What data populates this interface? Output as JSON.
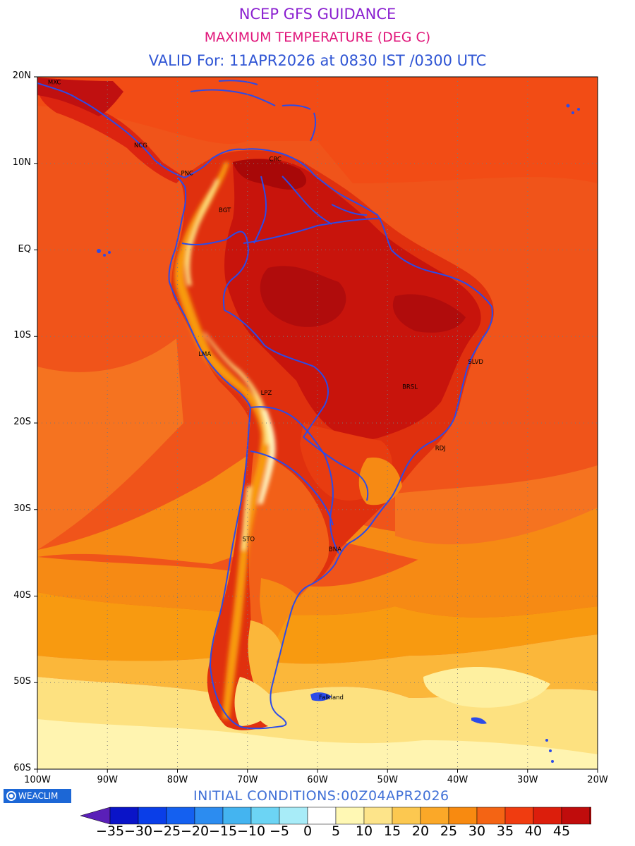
{
  "header": {
    "title": "NCEP GFS GUIDANCE",
    "subtitle": "MAXIMUM TEMPERATURE (DEG C)",
    "valid": "VALID For: 11APR2026 at 0830 IST /0300 UTC",
    "title_color": "#8a1fd0",
    "subtitle_color": "#e0157a",
    "valid_color": "#2f55d4"
  },
  "map": {
    "y_ticks": [
      "20N",
      "10N",
      "EQ",
      "10S",
      "20S",
      "30S",
      "40S",
      "50S",
      "60S"
    ],
    "x_ticks": [
      "100W",
      "90W",
      "80W",
      "70W",
      "60W",
      "50W",
      "40W",
      "30W",
      "20W"
    ],
    "coastline_color": "#2c4be8",
    "cities": [
      {
        "name": "MXC",
        "lon": -98.5,
        "lat": 19.4
      },
      {
        "name": "NCG",
        "lon": -86.2,
        "lat": 12.1
      },
      {
        "name": "CRC",
        "lon": -66.9,
        "lat": 10.5
      },
      {
        "name": "PNC",
        "lon": -79.5,
        "lat": 8.9
      },
      {
        "name": "BGT",
        "lon": -74.1,
        "lat": 4.6
      },
      {
        "name": "LMA",
        "lon": -77.0,
        "lat": -12.0
      },
      {
        "name": "LPZ",
        "lon": -68.1,
        "lat": -16.5
      },
      {
        "name": "SLVD",
        "lon": -38.5,
        "lat": -12.9
      },
      {
        "name": "BRSL",
        "lon": -47.9,
        "lat": -15.8
      },
      {
        "name": "RDJ",
        "lon": -43.2,
        "lat": -22.9
      },
      {
        "name": "STO",
        "lon": -70.7,
        "lat": -33.4
      },
      {
        "name": "BNA",
        "lon": -58.4,
        "lat": -34.6
      },
      {
        "name": "Falkland",
        "lon": -59.8,
        "lat": -51.7
      }
    ]
  },
  "footer": {
    "logo": "WEACLIM",
    "initial_conditions": "INITIAL CONDITIONS:00Z04APR2026"
  },
  "colorbar": {
    "labels": [
      "-35",
      "-30",
      "-25",
      "-20",
      "-15",
      "-10",
      "-5",
      "0",
      "5",
      "10",
      "15",
      "20",
      "25",
      "30",
      "35",
      "40",
      "45"
    ],
    "colors": [
      "#5a1fb8",
      "#0a14c8",
      "#0a3ee8",
      "#1460f0",
      "#2c8cf0",
      "#44b4f0",
      "#6cd4f4",
      "#a8ecf8",
      "#ffffff",
      "#fff8b4",
      "#fde48a",
      "#fcc850",
      "#fba828",
      "#f88a10",
      "#f46414",
      "#f03c10",
      "#dc1e0c",
      "#c00c0c",
      "#a80808",
      "#000000"
    ]
  },
  "chart_data": {
    "type": "heatmap",
    "title": "MAXIMUM TEMPERATURE (DEG C)",
    "units": "DEG C",
    "lon_range": [
      -100,
      -20
    ],
    "lat_range": [
      -60,
      20
    ],
    "levels": [
      -35,
      -30,
      -25,
      -20,
      -15,
      -10,
      -5,
      0,
      5,
      10,
      15,
      20,
      25,
      30,
      35,
      40,
      45
    ],
    "zones": [
      {
        "region": "Amazon basin / central Brazil / northern Venezuela",
        "range": "35-45"
      },
      {
        "region": "tropical Pacific and Atlantic oceans",
        "range": "25-35"
      },
      {
        "region": "Andes high terrain",
        "range": "5-20"
      },
      {
        "region": "Southern Brazil / Uruguay",
        "range": "20-25"
      },
      {
        "region": "Ocean 35S-45S",
        "range": "15-20"
      },
      {
        "region": "Ocean 45S-50S",
        "range": "10-15"
      },
      {
        "region": "South of 50S",
        "range": "5-10"
      }
    ]
  }
}
